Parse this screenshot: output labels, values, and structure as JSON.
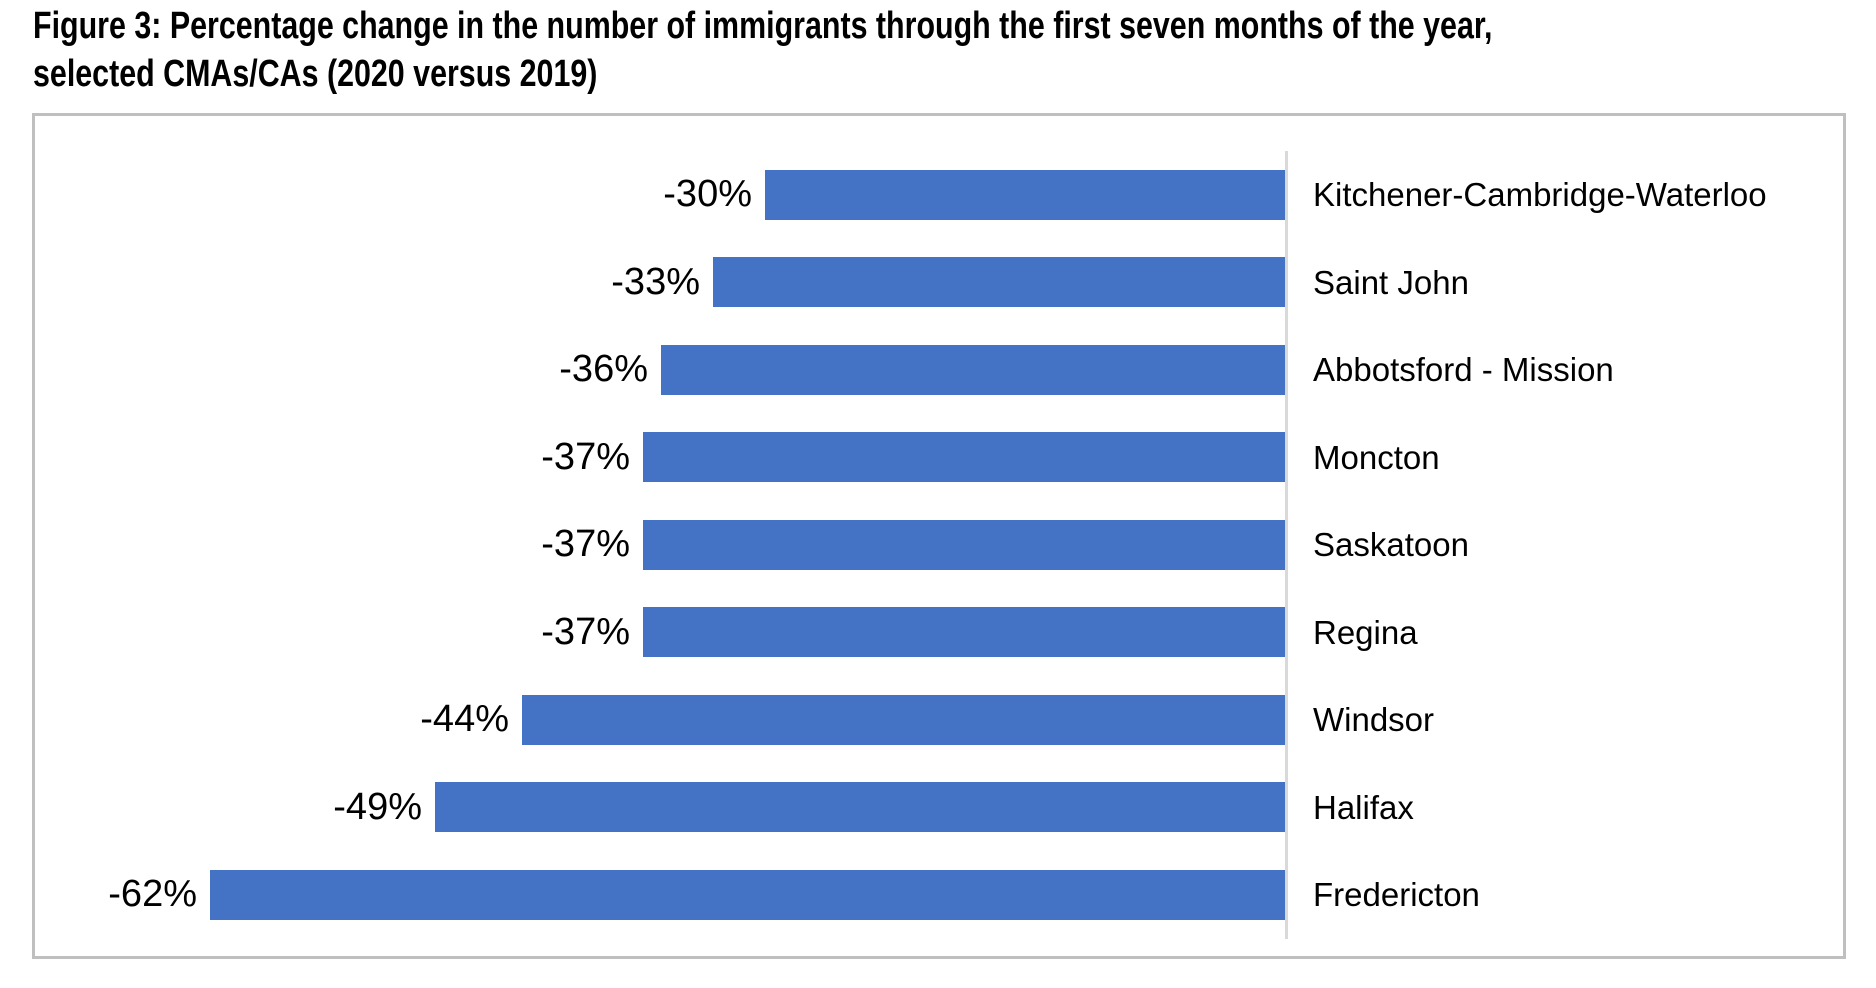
{
  "title": {
    "line1": "Figure 3: Percentage change in the number of immigrants through the first seven months of the year,",
    "line2": "selected CMAs/CAs (2020 versus 2019)"
  },
  "chart_data": {
    "type": "bar",
    "orientation": "horizontal",
    "title": "Figure 3: Percentage change in the number of immigrants through the first seven months of the year, selected CMAs/CAs (2020 versus 2019)",
    "categories": [
      "Kitchener-Cambridge-Waterloo",
      "Saint John",
      "Abbotsford - Mission",
      "Moncton",
      "Saskatoon",
      "Regina",
      "Windsor",
      "Halifax",
      "Fredericton"
    ],
    "values": [
      -30,
      -33,
      -36,
      -37,
      -37,
      -37,
      -44,
      -49,
      -62
    ],
    "value_labels": [
      "-30%",
      "-33%",
      "-36%",
      "-37%",
      "-37%",
      "-37%",
      "-44%",
      "-49%",
      "-62%"
    ],
    "xlabel": "",
    "ylabel": "",
    "xlim": [
      -72,
      0
    ],
    "grid": false,
    "legend": "none",
    "value_label_position": "left-of-bar",
    "category_label_position": "right-of-axis",
    "bar_color": "#4472c4",
    "axis_line_color": "#d9d9d9",
    "border_color": "#bfbfbf",
    "text_color": "#000000"
  }
}
